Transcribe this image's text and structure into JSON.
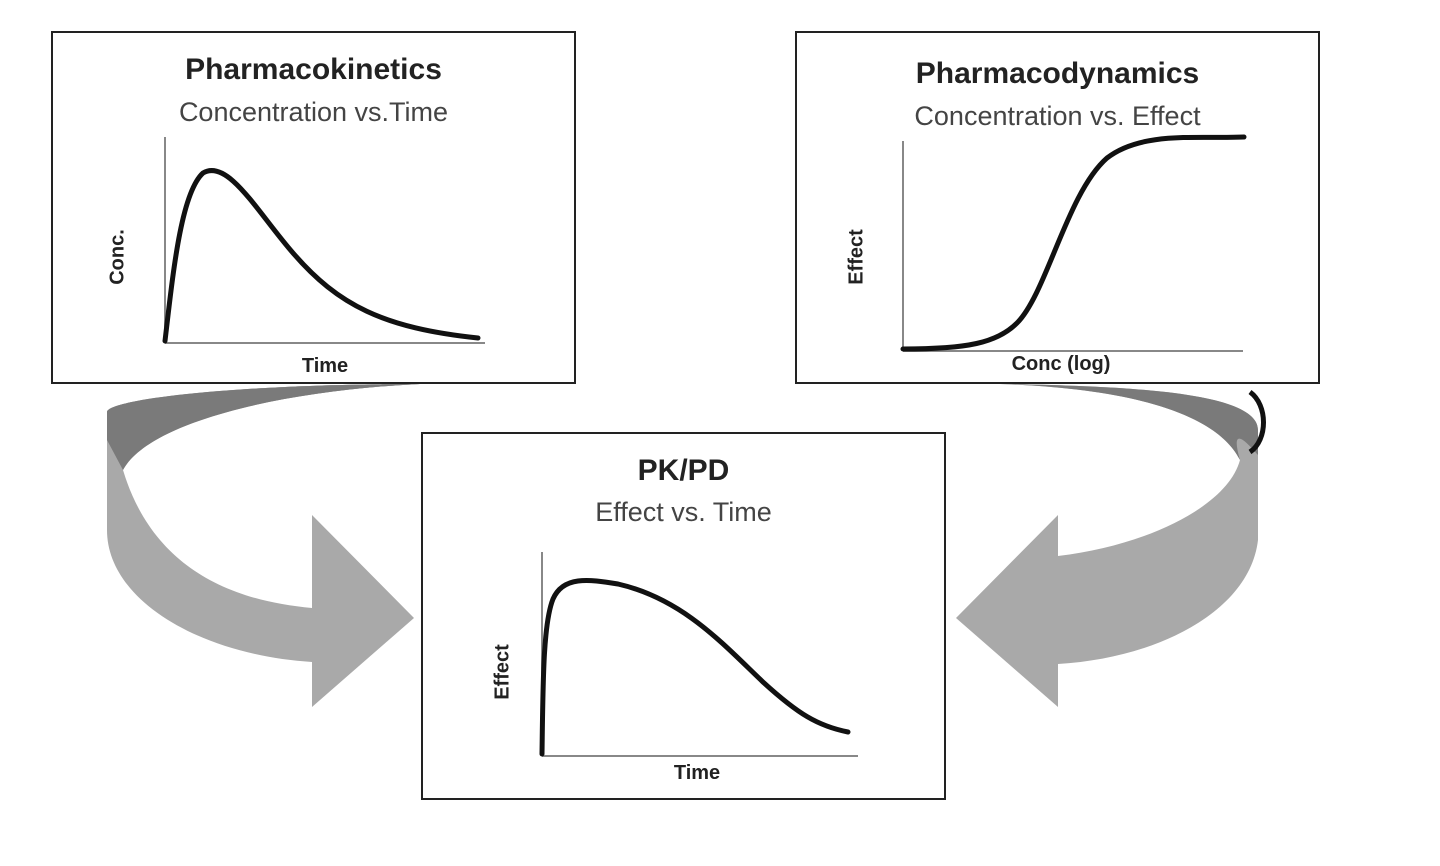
{
  "panels": {
    "pk": {
      "title": "Pharmacokinetics",
      "subtitle": "Concentration vs.Time",
      "xlabel": "Time",
      "ylabel": "Conc."
    },
    "pd": {
      "title": "Pharmacodynamics",
      "subtitle": "Concentration vs. Effect",
      "xlabel": "Conc (log)",
      "ylabel": "Effect"
    },
    "pkpd": {
      "title": "PK/PD",
      "subtitle": "Effect vs. Time",
      "xlabel": "Time",
      "ylabel": "Effect"
    }
  },
  "colors": {
    "arrow_light": "#a9a9a9",
    "arrow_dark": "#7a7a7a",
    "curve": "#111111",
    "axis": "#888888",
    "border": "#222222"
  }
}
